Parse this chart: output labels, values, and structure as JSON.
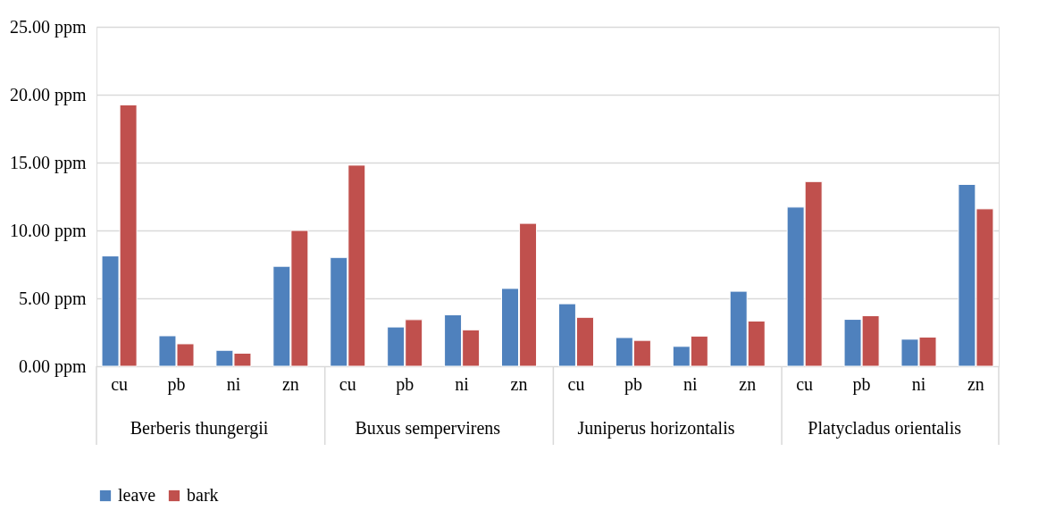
{
  "chart_data": {
    "type": "bar",
    "categories": [
      "cu",
      "pb",
      "ni",
      "zn",
      "cu",
      "pb",
      "ni",
      "zn",
      "cu",
      "pb",
      "ni",
      "zn",
      "cu",
      "pb",
      "ni",
      "zn"
    ],
    "annotations": [
      "Berberis thungergii",
      "Buxus sempervirens",
      "Juniperus horizontalis",
      "Platycladus orientalis"
    ],
    "series": [
      {
        "name": "leave",
        "color": "#4f81bd",
        "values": [
          8.12,
          2.24,
          1.17,
          7.36,
          8.01,
          2.89,
          3.79,
          5.73,
          4.6,
          2.11,
          1.46,
          5.52,
          11.72,
          3.45,
          1.99,
          13.39
        ]
      },
      {
        "name": "bark",
        "color": "#c0504d",
        "values": [
          19.25,
          1.65,
          0.96,
          10.0,
          14.81,
          3.43,
          2.68,
          10.52,
          3.6,
          1.9,
          2.22,
          3.33,
          13.6,
          3.72,
          2.15,
          11.59
        ]
      }
    ],
    "ylim": [
      0,
      25
    ],
    "yticks": [
      {
        "value": 0,
        "label": "0.00 ppm"
      },
      {
        "value": 5,
        "label": "5.00 ppm"
      },
      {
        "value": 10,
        "label": "10.00 ppm"
      },
      {
        "value": 15,
        "label": "15.00 ppm"
      },
      {
        "value": 20,
        "label": "20.00 ppm"
      },
      {
        "value": 25,
        "label": "25.00 ppm"
      }
    ],
    "grid": "y",
    "legend": "bottom"
  }
}
